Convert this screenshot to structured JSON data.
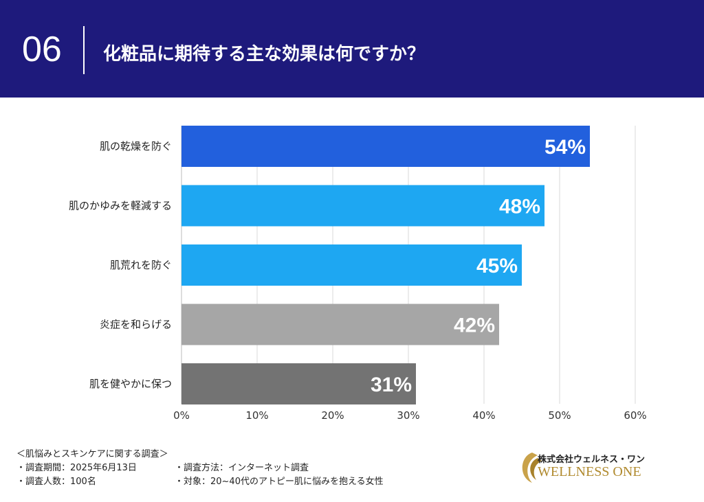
{
  "header": {
    "number": "06",
    "title": "化粧品に期待する主な効果は何ですか？"
  },
  "chart_data": {
    "type": "bar",
    "orientation": "horizontal",
    "categories": [
      "肌の乾燥を防ぐ",
      "肌のかゆみを軽減する",
      "肌荒れを防ぐ",
      "炎症を和らげる",
      "肌を健やかに保つ"
    ],
    "values": [
      54,
      48,
      45,
      42,
      31
    ],
    "data_labels": [
      "54%",
      "48%",
      "45%",
      "42%",
      "31%"
    ],
    "colors": [
      "#2260dd",
      "#1ea7f2",
      "#1ea7f2",
      "#a6a6a6",
      "#737373"
    ],
    "xlim": [
      0,
      60
    ],
    "xticks": [
      "0%",
      "10%",
      "20%",
      "30%",
      "40%",
      "50%",
      "60%"
    ],
    "grid": true
  },
  "footer": {
    "survey_title": "＜肌悩みとスキンケアに関する調査＞",
    "period": "・調査期間：2025年6月13日",
    "method": "・調査方法：インターネット調査",
    "count": "・調査人数：100名",
    "target": "・対象：20~40代のアトピー肌に悩みを抱える女性"
  },
  "logo": {
    "jp": "株式会社ウェルネス・ワン",
    "en": "WELLNESS ONE"
  }
}
